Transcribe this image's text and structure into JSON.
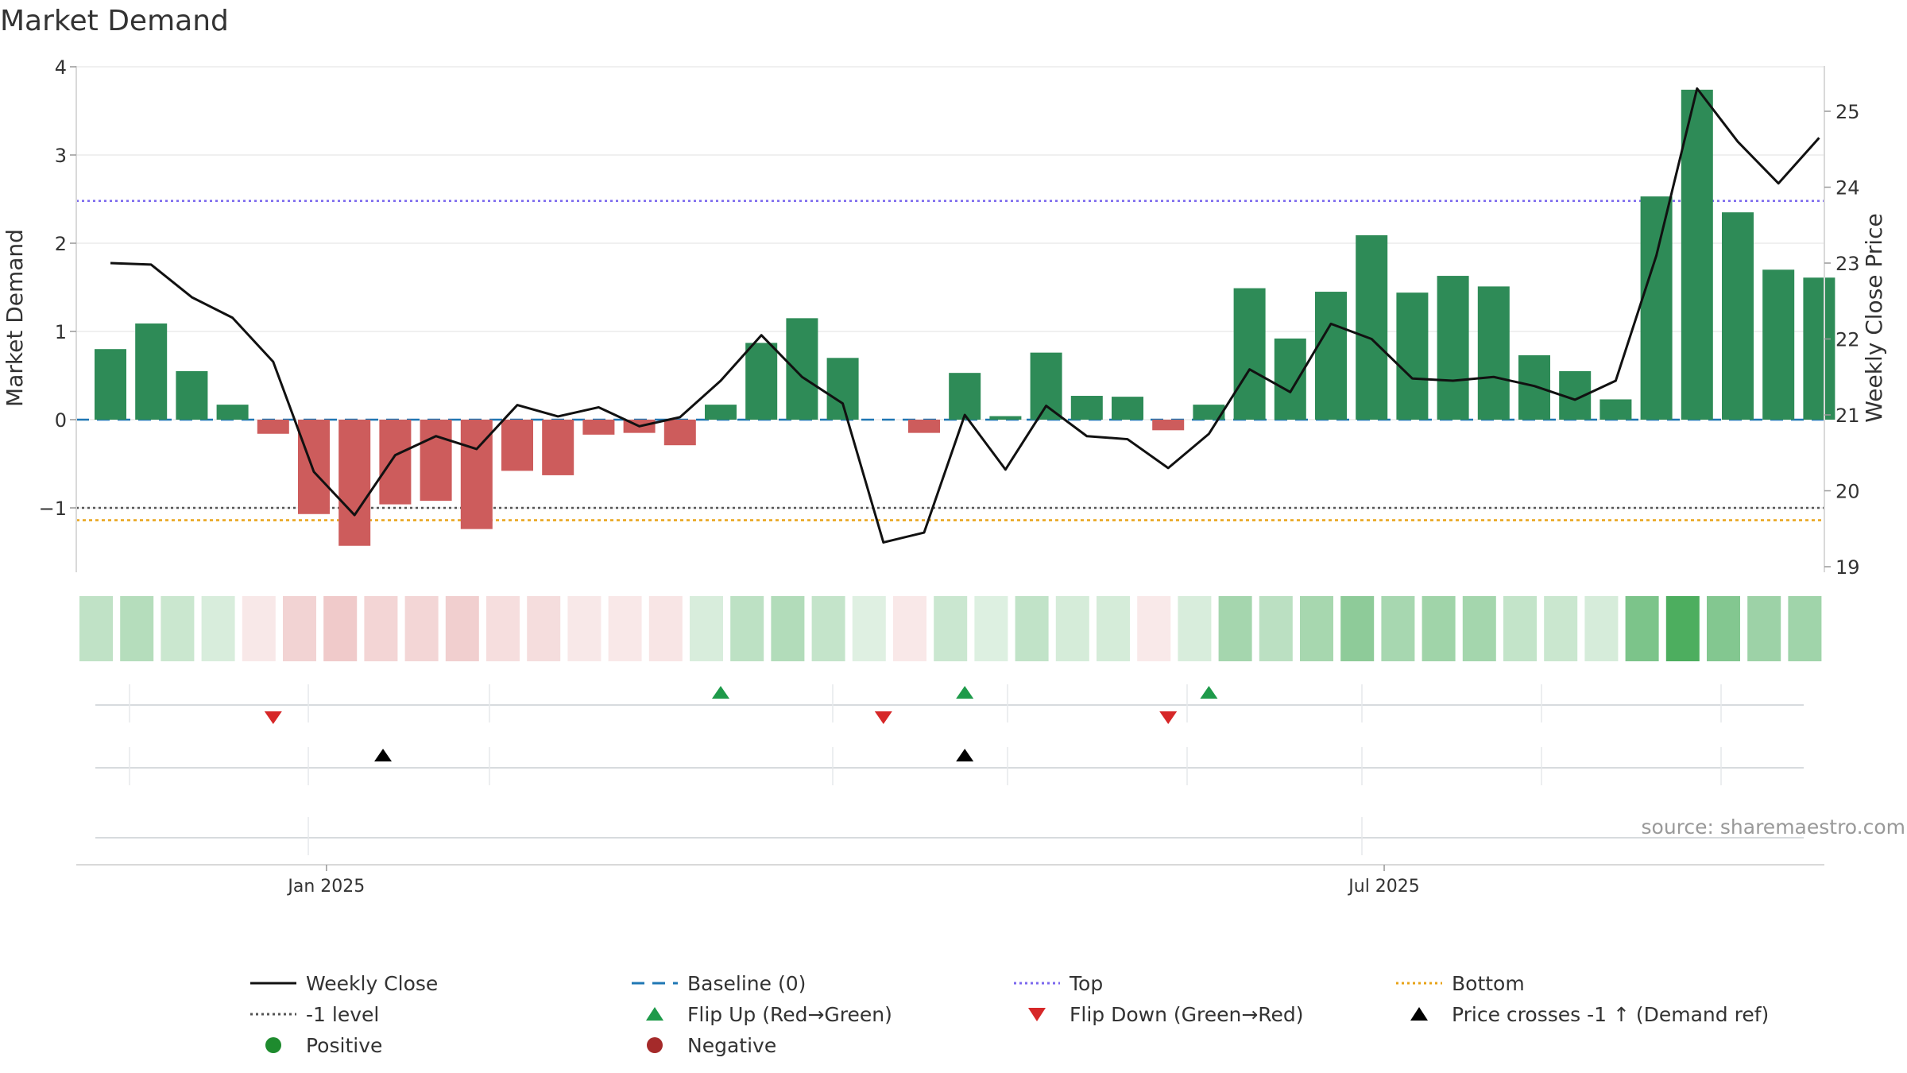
{
  "chart_data": {
    "type": "bar",
    "title": "Market Demand",
    "ylabel": "Market Demand",
    "y2label": "Weekly Close Price",
    "source": "source: sharemaestro.com",
    "ylim": [
      -1.7,
      4.0
    ],
    "y2lim": [
      19.0,
      25.6
    ],
    "yticks": [
      -1,
      0,
      1,
      2,
      3,
      4
    ],
    "ytick_labels": [
      "−1",
      "0",
      "1",
      "2",
      "3",
      "4"
    ],
    "y2ticks": [
      19,
      20,
      21,
      22,
      23,
      24,
      25
    ],
    "x_tick_labels": [
      {
        "label": "Jan 2025",
        "week": 5.7
      },
      {
        "label": "Jul 2025",
        "week": 31.7
      }
    ],
    "weeks": 44,
    "values": [
      0.8,
      1.09,
      0.55,
      0.17,
      -0.16,
      -1.07,
      -1.43,
      -0.96,
      -0.92,
      -1.24,
      -0.58,
      -0.63,
      -0.17,
      -0.15,
      -0.29,
      0.17,
      0.87,
      1.15,
      0.7,
      0,
      -0.15,
      0.53,
      0.04,
      0.76,
      0.27,
      0.26,
      -0.12,
      0.17,
      1.49,
      0.92,
      1.45,
      2.09,
      1.44,
      1.63,
      1.51,
      0.73,
      0.55,
      0.23,
      2.53,
      3.74,
      2.35,
      1.7,
      1.61
    ],
    "close": [
      23.0,
      22.98,
      22.55,
      22.28,
      21.7,
      20.25,
      19.68,
      20.47,
      20.72,
      20.55,
      21.13,
      20.98,
      21.1,
      20.85,
      20.97,
      21.45,
      22.05,
      21.5,
      21.15,
      19.32,
      19.45,
      21.0,
      20.28,
      21.12,
      20.72,
      20.68,
      20.3,
      20.75,
      21.6,
      21.3,
      22.2,
      22.0,
      21.48,
      21.45,
      21.5,
      21.38,
      21.2,
      21.45,
      23.1,
      25.3,
      24.6,
      24.05,
      24.65
    ],
    "close_x_offset": 0.5,
    "reference_lines": {
      "top": 2.48,
      "minus_one": -1.0,
      "bottom": -1.14,
      "baseline": 0
    },
    "flip_up_weeks": [
      15,
      21,
      27
    ],
    "flip_down_weeks": [
      4,
      19,
      26
    ],
    "price_cross_weeks": [
      6.7,
      21
    ],
    "colors": {
      "positive_bar": "#2e8b57",
      "negative_bar": "#cd5c5c",
      "close_line": "#111111",
      "baseline": "#1f77b4",
      "top": "#7b68ee",
      "minus_one": "#555555",
      "bottom": "#e8a317",
      "flip_up": "#1e9a4a",
      "flip_down": "#d62728",
      "price_cross": "#000000",
      "positive_dot": "#1e8b2e",
      "negative_dot": "#a52a2a"
    },
    "legend": [
      {
        "label": "Weekly Close",
        "kind": "solid",
        "color": "#111111"
      },
      {
        "label": "Baseline (0)",
        "kind": "dashed",
        "color": "#1f77b4"
      },
      {
        "label": "Top",
        "kind": "dotted",
        "color": "#7b68ee"
      },
      {
        "label": "Bottom",
        "kind": "dotted",
        "color": "#e8a317"
      },
      {
        "label": "-1 level",
        "kind": "dotted",
        "color": "#555555"
      },
      {
        "label": "Flip Up (Red→Green)",
        "kind": "tri-up",
        "color": "#1e9a4a"
      },
      {
        "label": "Flip Down (Green→Red)",
        "kind": "tri-down",
        "color": "#d62728"
      },
      {
        "label": "Price crosses -1 ↑ (Demand ref)",
        "kind": "tri-up",
        "color": "#000000"
      },
      {
        "label": "Positive",
        "kind": "dot",
        "color": "#1e8b2e"
      },
      {
        "label": "Negative",
        "kind": "dot",
        "color": "#a52a2a"
      }
    ]
  }
}
